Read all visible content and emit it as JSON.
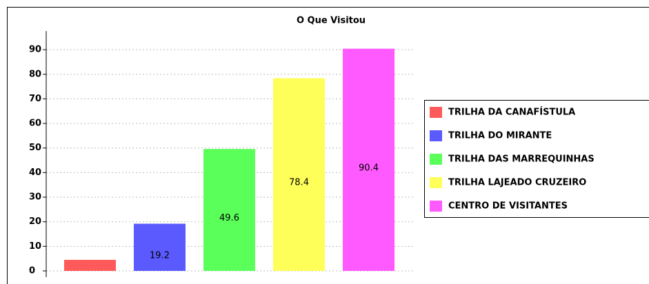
{
  "chart_data": {
    "type": "bar",
    "title": "O Que Visitou",
    "series": [
      {
        "name": "TRILHA DA CANAFÍSTULA",
        "color": "#ff5a5a",
        "values": [
          4.5
        ]
      },
      {
        "name": "TRILHA DO MIRANTE",
        "color": "#5a5aff",
        "values": [
          19.2
        ]
      },
      {
        "name": "TRILHA DAS MARREQUINHAS",
        "color": "#5aff5a",
        "values": [
          49.6
        ]
      },
      {
        "name": "TRILHA LAJEADO CRUZEIRO",
        "color": "#ffff5a",
        "values": [
          78.4
        ]
      },
      {
        "name": "CENTRO DE VISITANTES",
        "color": "#ff5aff",
        "values": [
          90.4
        ]
      }
    ],
    "ylim": [
      0,
      97.6
    ],
    "yticks": [
      0,
      10,
      20,
      30,
      40,
      50,
      60,
      70,
      80,
      90
    ],
    "grid": true,
    "legend": "right"
  }
}
